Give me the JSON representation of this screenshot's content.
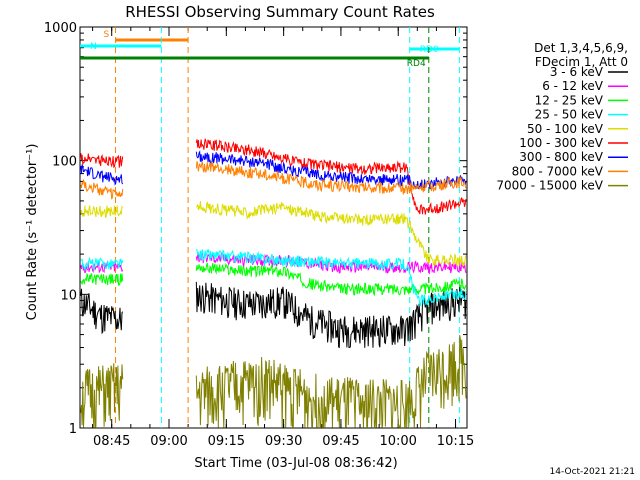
{
  "chart_data": {
    "type": "line",
    "title": "RHESSI Observing Summary Count Rates",
    "xlabel": "Start Time (03-Jul-08 08:36:42)",
    "ylabel": "Count Rate (s⁻¹ detector⁻¹)",
    "ylim": [
      1,
      1000
    ],
    "y_scale": "log",
    "y_ticks": [
      1,
      10,
      100,
      1000
    ],
    "x_time_range": [
      "08:36:42",
      "10:18:00"
    ],
    "x_ticks": [
      "08:45",
      "09:00",
      "09:15",
      "09:30",
      "09:45",
      "10:00",
      "10:15"
    ],
    "grid": false,
    "legend_header": [
      "Det 1,3,4,5,6,9,",
      "FDecim 1, Att 0"
    ],
    "legend_position": "right",
    "footer_date": "14-Oct-2021 21:21",
    "flags": [
      {
        "label": "S",
        "color": "#ff8000",
        "start": "08:46",
        "end": "09:05"
      },
      {
        "label": "N",
        "color": "#00ffff",
        "start": "08:36:42",
        "end": "08:58"
      },
      {
        "label": "RD0",
        "color": "#00ffff",
        "start": "10:03",
        "end": "10:16"
      },
      {
        "label": "RD4",
        "color": "#008000",
        "start": "08:36:42",
        "end": "10:08"
      }
    ],
    "gaps": [
      [
        "08:48",
        "09:07"
      ]
    ],
    "series": [
      {
        "name": "3 - 6 keV",
        "color": "#000000",
        "values": [
          [
            "08:37",
            9
          ],
          [
            "08:42",
            7
          ],
          [
            "08:47",
            6.5
          ],
          [
            "09:07",
            10
          ],
          [
            "09:15",
            9
          ],
          [
            "09:22",
            8.5
          ],
          [
            "09:30",
            9
          ],
          [
            "09:37",
            6.5
          ],
          [
            "09:45",
            5.5
          ],
          [
            "09:53",
            5.5
          ],
          [
            "10:02",
            5.5
          ],
          [
            "10:08",
            8
          ],
          [
            "10:16",
            9
          ]
        ]
      },
      {
        "name": "6 - 12 keV",
        "color": "#ff00ff",
        "values": [
          [
            "08:37",
            16
          ],
          [
            "08:47",
            16
          ],
          [
            "09:07",
            19
          ],
          [
            "09:20",
            18
          ],
          [
            "09:30",
            18
          ],
          [
            "09:45",
            16
          ],
          [
            "10:02",
            16
          ],
          [
            "10:08",
            16
          ],
          [
            "10:16",
            16
          ]
        ]
      },
      {
        "name": "12 - 25 keV",
        "color": "#00ff00",
        "values": [
          [
            "08:37",
            13
          ],
          [
            "08:47",
            13
          ],
          [
            "09:07",
            16
          ],
          [
            "09:20",
            15
          ],
          [
            "09:30",
            15
          ],
          [
            "09:37",
            12
          ],
          [
            "09:45",
            11
          ],
          [
            "10:02",
            11
          ],
          [
            "10:08",
            11
          ],
          [
            "10:16",
            12
          ]
        ]
      },
      {
        "name": "25 - 50 keV",
        "color": "#00ffff",
        "values": [
          [
            "08:37",
            17
          ],
          [
            "08:47",
            17
          ],
          [
            "09:07",
            20
          ],
          [
            "09:20",
            19
          ],
          [
            "09:30",
            18
          ],
          [
            "09:45",
            17
          ],
          [
            "10:02",
            17
          ],
          [
            "10:05",
            9
          ],
          [
            "10:16",
            10
          ]
        ]
      },
      {
        "name": "50 - 100 keV",
        "color": "#dddd00",
        "values": [
          [
            "08:37",
            42
          ],
          [
            "08:47",
            42
          ],
          [
            "09:07",
            46
          ],
          [
            "09:20",
            41
          ],
          [
            "09:30",
            45
          ],
          [
            "09:40",
            38
          ],
          [
            "09:50",
            36
          ],
          [
            "10:02",
            37
          ],
          [
            "10:08",
            18
          ],
          [
            "10:16",
            18
          ]
        ]
      },
      {
        "name": "100 - 300 keV",
        "color": "#ff0000",
        "values": [
          [
            "08:37",
            104
          ],
          [
            "08:42",
            101
          ],
          [
            "08:47",
            98
          ],
          [
            "09:07",
            135
          ],
          [
            "09:15",
            128
          ],
          [
            "09:25",
            115
          ],
          [
            "09:32",
            100
          ],
          [
            "09:40",
            92
          ],
          [
            "09:50",
            87
          ],
          [
            "10:02",
            90
          ],
          [
            "10:05",
            42
          ],
          [
            "10:16",
            48
          ]
        ]
      },
      {
        "name": "300 - 800 keV",
        "color": "#0000ff",
        "values": [
          [
            "08:37",
            86
          ],
          [
            "08:42",
            77
          ],
          [
            "08:47",
            72
          ],
          [
            "09:07",
            110
          ],
          [
            "09:15",
            103
          ],
          [
            "09:25",
            96
          ],
          [
            "09:32",
            85
          ],
          [
            "09:40",
            78
          ],
          [
            "09:50",
            73
          ],
          [
            "10:02",
            72
          ],
          [
            "10:05",
            66
          ],
          [
            "10:16",
            72
          ]
        ]
      },
      {
        "name": "800 - 7000 keV",
        "color": "#ff8000",
        "values": [
          [
            "08:37",
            68
          ],
          [
            "08:42",
            60
          ],
          [
            "08:47",
            55
          ],
          [
            "09:07",
            92
          ],
          [
            "09:15",
            86
          ],
          [
            "09:25",
            80
          ],
          [
            "09:32",
            72
          ],
          [
            "09:40",
            66
          ],
          [
            "09:50",
            63
          ],
          [
            "10:02",
            62
          ],
          [
            "10:05",
            63
          ],
          [
            "10:16",
            69
          ]
        ]
      },
      {
        "name": "7000 - 15000 keV",
        "color": "#808000",
        "values": [
          [
            "08:37",
            1.8
          ],
          [
            "08:47",
            2
          ],
          [
            "09:07",
            1.8
          ],
          [
            "09:25",
            2.3
          ],
          [
            "09:40",
            1.6
          ],
          [
            "10:02",
            1.5
          ],
          [
            "10:08",
            2.5
          ],
          [
            "10:16",
            3.3
          ]
        ]
      }
    ]
  }
}
